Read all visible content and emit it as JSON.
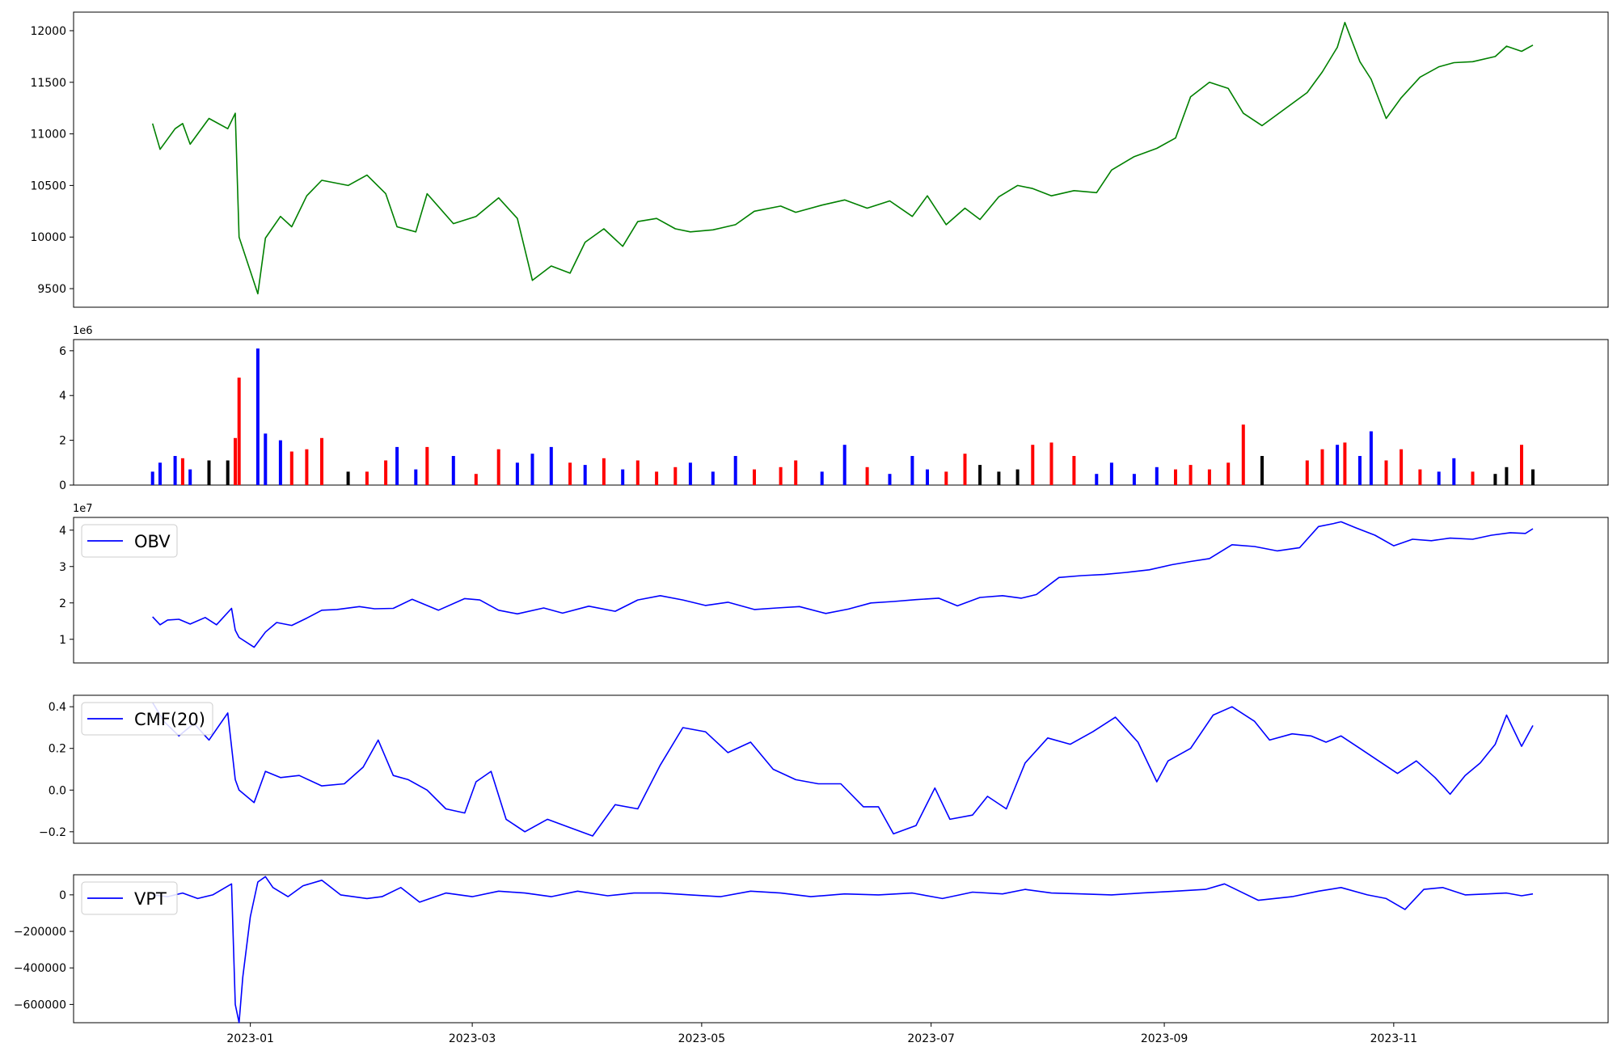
{
  "chart_data": [
    {
      "id": "price",
      "type": "line",
      "color": "#008000",
      "ylim": [
        9320,
        12180
      ],
      "yticks": [
        9500,
        10000,
        10500,
        11000,
        11500,
        12000
      ],
      "x": [
        "2022-12-06",
        "2022-12-08",
        "2022-12-12",
        "2022-12-14",
        "2022-12-16",
        "2022-12-21",
        "2022-12-26",
        "2022-12-28",
        "2022-12-29",
        "2023-01-03",
        "2023-01-05",
        "2023-01-09",
        "2023-01-12",
        "2023-01-16",
        "2023-01-20",
        "2023-01-27",
        "2023-02-01",
        "2023-02-06",
        "2023-02-09",
        "2023-02-14",
        "2023-02-17",
        "2023-02-24",
        "2023-03-02",
        "2023-03-08",
        "2023-03-13",
        "2023-03-17",
        "2023-03-22",
        "2023-03-27",
        "2023-03-31",
        "2023-04-05",
        "2023-04-10",
        "2023-04-14",
        "2023-04-19",
        "2023-04-24",
        "2023-04-28",
        "2023-05-04",
        "2023-05-10",
        "2023-05-15",
        "2023-05-22",
        "2023-05-26",
        "2023-06-02",
        "2023-06-08",
        "2023-06-14",
        "2023-06-20",
        "2023-06-26",
        "2023-06-30",
        "2023-07-05",
        "2023-07-10",
        "2023-07-14",
        "2023-07-19",
        "2023-07-24",
        "2023-07-28",
        "2023-08-02",
        "2023-08-08",
        "2023-08-14",
        "2023-08-18",
        "2023-08-24",
        "2023-08-30",
        "2023-09-04",
        "2023-09-08",
        "2023-09-13",
        "2023-09-18",
        "2023-09-22",
        "2023-09-27",
        "2023-10-09",
        "2023-10-13",
        "2023-10-17",
        "2023-10-19",
        "2023-10-23",
        "2023-10-26",
        "2023-10-30",
        "2023-11-03",
        "2023-11-08",
        "2023-11-13",
        "2023-11-17",
        "2023-11-22",
        "2023-11-28",
        "2023-12-01",
        "2023-12-05",
        "2023-12-08"
      ],
      "values": [
        11100,
        10850,
        11050,
        11100,
        10900,
        11150,
        11050,
        11200,
        10000,
        9450,
        9990,
        10200,
        10100,
        10400,
        10550,
        10500,
        10600,
        10420,
        10100,
        10050,
        10420,
        10130,
        10200,
        10380,
        10180,
        9580,
        9720,
        9650,
        9950,
        10080,
        9910,
        10150,
        10180,
        10080,
        10050,
        10070,
        10120,
        10250,
        10300,
        10240,
        10310,
        10360,
        10280,
        10350,
        10200,
        10400,
        10120,
        10280,
        10170,
        10390,
        10500,
        10470,
        10400,
        10450,
        10430,
        10650,
        10780,
        10860,
        10960,
        11360,
        11500,
        11440,
        11200,
        11080,
        11400,
        11600,
        11840,
        12080,
        11700,
        11530,
        11150,
        11350,
        11550,
        11650,
        11690,
        11700,
        11750,
        11850,
        11800,
        11860
      ]
    },
    {
      "id": "volume",
      "type": "bar",
      "exponent_label": "1e6",
      "ylim": [
        0,
        6500000
      ],
      "yticks": [
        0,
        2000000,
        4000000,
        6000000
      ],
      "ytick_labels": [
        "0",
        "2",
        "4",
        "6"
      ],
      "up_color": "#ff0000",
      "down_color": "#0000ff",
      "flat_color": "#000000",
      "x": [
        "2022-12-06",
        "2022-12-08",
        "2022-12-12",
        "2022-12-14",
        "2022-12-16",
        "2022-12-21",
        "2022-12-26",
        "2022-12-28",
        "2022-12-29",
        "2023-01-03",
        "2023-01-05",
        "2023-01-09",
        "2023-01-12",
        "2023-01-16",
        "2023-01-20",
        "2023-01-27",
        "2023-02-01",
        "2023-02-06",
        "2023-02-09",
        "2023-02-14",
        "2023-02-17",
        "2023-02-24",
        "2023-03-02",
        "2023-03-08",
        "2023-03-13",
        "2023-03-17",
        "2023-03-22",
        "2023-03-27",
        "2023-03-31",
        "2023-04-05",
        "2023-04-10",
        "2023-04-14",
        "2023-04-19",
        "2023-04-24",
        "2023-04-28",
        "2023-05-04",
        "2023-05-10",
        "2023-05-15",
        "2023-05-22",
        "2023-05-26",
        "2023-06-02",
        "2023-06-08",
        "2023-06-14",
        "2023-06-20",
        "2023-06-26",
        "2023-06-30",
        "2023-07-05",
        "2023-07-10",
        "2023-07-14",
        "2023-07-19",
        "2023-07-24",
        "2023-07-28",
        "2023-08-02",
        "2023-08-08",
        "2023-08-14",
        "2023-08-18",
        "2023-08-24",
        "2023-08-30",
        "2023-09-04",
        "2023-09-08",
        "2023-09-13",
        "2023-09-18",
        "2023-09-22",
        "2023-09-27",
        "2023-10-09",
        "2023-10-13",
        "2023-10-17",
        "2023-10-19",
        "2023-10-23",
        "2023-10-26",
        "2023-10-30",
        "2023-11-03",
        "2023-11-08",
        "2023-11-13",
        "2023-11-17",
        "2023-11-22",
        "2023-11-28",
        "2023-12-01",
        "2023-12-05",
        "2023-12-08"
      ],
      "values": [
        600000,
        1000000,
        1300000,
        1200000,
        700000,
        1100000,
        1100000,
        2100000,
        4800000,
        6100000,
        2300000,
        2000000,
        1500000,
        1600000,
        2100000,
        600000,
        600000,
        1100000,
        1700000,
        700000,
        1700000,
        1300000,
        500000,
        1600000,
        1000000,
        1400000,
        1700000,
        1000000,
        900000,
        1200000,
        700000,
        1100000,
        600000,
        800000,
        1000000,
        600000,
        1300000,
        700000,
        800000,
        1100000,
        600000,
        1800000,
        800000,
        500000,
        1300000,
        700000,
        600000,
        1400000,
        900000,
        600000,
        700000,
        1800000,
        1900000,
        1300000,
        500000,
        1000000,
        500000,
        800000,
        700000,
        900000,
        700000,
        1000000,
        2700000,
        1300000,
        1100000,
        1600000,
        1800000,
        1900000,
        1300000,
        2400000,
        1100000,
        1600000,
        700000,
        600000,
        1200000,
        600000,
        500000,
        800000,
        1800000,
        700000
      ],
      "directions": [
        "down",
        "down",
        "down",
        "up",
        "down",
        "flat",
        "flat",
        "up",
        "up",
        "down",
        "down",
        "down",
        "up",
        "up",
        "up",
        "flat",
        "up",
        "up",
        "down",
        "down",
        "up",
        "down",
        "up",
        "up",
        "down",
        "down",
        "down",
        "up",
        "down",
        "up",
        "down",
        "up",
        "up",
        "up",
        "down",
        "down",
        "down",
        "up",
        "up",
        "up",
        "down",
        "down",
        "up",
        "down",
        "down",
        "down",
        "up",
        "up",
        "flat",
        "flat",
        "flat",
        "up",
        "up",
        "up",
        "down",
        "down",
        "down",
        "down",
        "up",
        "up",
        "up",
        "up",
        "up",
        "flat",
        "up",
        "up",
        "down",
        "up",
        "down",
        "down",
        "up",
        "up",
        "up",
        "down",
        "down",
        "up",
        "flat",
        "flat",
        "up",
        "flat"
      ]
    },
    {
      "id": "obv",
      "type": "line",
      "color": "#0000ff",
      "legend": "OBV",
      "exponent_label": "1e7",
      "ylim": [
        3500000,
        43500000
      ],
      "yticks": [
        10000000,
        20000000,
        30000000,
        40000000
      ],
      "ytick_labels": [
        "1",
        "2",
        "3",
        "4"
      ],
      "x": [
        "2022-12-06",
        "2022-12-08",
        "2022-12-10",
        "2022-12-13",
        "2022-12-16",
        "2022-12-20",
        "2022-12-23",
        "2022-12-27",
        "2022-12-28",
        "2022-12-29",
        "2023-01-02",
        "2023-01-05",
        "2023-01-08",
        "2023-01-12",
        "2023-01-16",
        "2023-01-20",
        "2023-01-24",
        "2023-01-30",
        "2023-02-03",
        "2023-02-08",
        "2023-02-13",
        "2023-02-20",
        "2023-02-27",
        "2023-03-03",
        "2023-03-08",
        "2023-03-13",
        "2023-03-20",
        "2023-03-25",
        "2023-04-01",
        "2023-04-08",
        "2023-04-14",
        "2023-04-20",
        "2023-04-26",
        "2023-05-02",
        "2023-05-08",
        "2023-05-15",
        "2023-05-21",
        "2023-05-27",
        "2023-06-03",
        "2023-06-09",
        "2023-06-15",
        "2023-06-21",
        "2023-06-27",
        "2023-07-03",
        "2023-07-08",
        "2023-07-14",
        "2023-07-20",
        "2023-07-25",
        "2023-07-29",
        "2023-08-04",
        "2023-08-10",
        "2023-08-16",
        "2023-08-22",
        "2023-08-28",
        "2023-09-03",
        "2023-09-08",
        "2023-09-13",
        "2023-09-19",
        "2023-09-25",
        "2023-10-01",
        "2023-10-07",
        "2023-10-12",
        "2023-10-16",
        "2023-10-18",
        "2023-10-22",
        "2023-10-27",
        "2023-11-01",
        "2023-11-06",
        "2023-11-11",
        "2023-11-16",
        "2023-11-22",
        "2023-11-27",
        "2023-12-02",
        "2023-12-06",
        "2023-12-08"
      ],
      "values": [
        16200000,
        14000000,
        15300000,
        15500000,
        14200000,
        16000000,
        14000000,
        18500000,
        12500000,
        10500000,
        7800000,
        12000000,
        14600000,
        13800000,
        15800000,
        18000000,
        18200000,
        19000000,
        18400000,
        18500000,
        21000000,
        18000000,
        21200000,
        20800000,
        18000000,
        17000000,
        18600000,
        17200000,
        19100000,
        17700000,
        20800000,
        22000000,
        20800000,
        19300000,
        20200000,
        18200000,
        18600000,
        19000000,
        17100000,
        18300000,
        20000000,
        20400000,
        20900000,
        21300000,
        19200000,
        21500000,
        22000000,
        21300000,
        22300000,
        27000000,
        27500000,
        27800000,
        28400000,
        29100000,
        30500000,
        31400000,
        32200000,
        36000000,
        35500000,
        34300000,
        35200000,
        41000000,
        41800000,
        42300000,
        40600000,
        38600000,
        35700000,
        37500000,
        37100000,
        37800000,
        37500000,
        38600000,
        39300000,
        39100000,
        40400000
      ]
    },
    {
      "id": "cmf",
      "type": "line",
      "color": "#0000ff",
      "legend": "CMF(20)",
      "ylim": [
        -0.255,
        0.455
      ],
      "yticks": [
        -0.2,
        0.0,
        0.2,
        0.4
      ],
      "ytick_labels": [
        "−0.2",
        "0.0",
        "0.2",
        "0.4"
      ],
      "x": [
        "2022-12-06",
        "2022-12-09",
        "2022-12-13",
        "2022-12-17",
        "2022-12-21",
        "2022-12-26",
        "2022-12-28",
        "2022-12-29",
        "2023-01-02",
        "2023-01-05",
        "2023-01-09",
        "2023-01-14",
        "2023-01-20",
        "2023-01-26",
        "2023-01-31",
        "2023-02-04",
        "2023-02-08",
        "2023-02-12",
        "2023-02-17",
        "2023-02-22",
        "2023-02-27",
        "2023-03-02",
        "2023-03-06",
        "2023-03-10",
        "2023-03-15",
        "2023-03-21",
        "2023-03-27",
        "2023-04-02",
        "2023-04-08",
        "2023-04-14",
        "2023-04-20",
        "2023-04-26",
        "2023-05-02",
        "2023-05-08",
        "2023-05-14",
        "2023-05-20",
        "2023-05-26",
        "2023-06-01",
        "2023-06-07",
        "2023-06-13",
        "2023-06-17",
        "2023-06-21",
        "2023-06-27",
        "2023-07-02",
        "2023-07-06",
        "2023-07-12",
        "2023-07-16",
        "2023-07-21",
        "2023-07-26",
        "2023-08-01",
        "2023-08-07",
        "2023-08-13",
        "2023-08-19",
        "2023-08-25",
        "2023-08-30",
        "2023-09-02",
        "2023-09-08",
        "2023-09-14",
        "2023-09-19",
        "2023-09-25",
        "2023-09-29",
        "2023-10-05",
        "2023-10-10",
        "2023-10-14",
        "2023-10-18",
        "2023-10-23",
        "2023-10-28",
        "2023-11-02",
        "2023-11-07",
        "2023-11-12",
        "2023-11-16",
        "2023-11-20",
        "2023-11-24",
        "2023-11-28",
        "2023-12-01",
        "2023-12-05",
        "2023-12-08"
      ],
      "values": [
        0.42,
        0.33,
        0.26,
        0.32,
        0.24,
        0.37,
        0.05,
        0.0,
        -0.06,
        0.09,
        0.06,
        0.07,
        0.02,
        0.03,
        0.11,
        0.24,
        0.07,
        0.05,
        0.0,
        -0.09,
        -0.11,
        0.04,
        0.09,
        -0.14,
        -0.2,
        -0.14,
        -0.18,
        -0.22,
        -0.07,
        -0.09,
        0.12,
        0.3,
        0.28,
        0.18,
        0.23,
        0.1,
        0.05,
        0.03,
        0.03,
        -0.08,
        -0.08,
        -0.21,
        -0.17,
        0.01,
        -0.14,
        -0.12,
        -0.03,
        -0.09,
        0.13,
        0.25,
        0.22,
        0.28,
        0.35,
        0.23,
        0.04,
        0.14,
        0.2,
        0.36,
        0.4,
        0.33,
        0.24,
        0.27,
        0.26,
        0.23,
        0.26,
        0.2,
        0.14,
        0.08,
        0.14,
        0.06,
        -0.02,
        0.07,
        0.13,
        0.22,
        0.36,
        0.21,
        0.31
      ]
    },
    {
      "id": "vpt",
      "type": "line",
      "color": "#0000ff",
      "legend": "VPT",
      "ylim": [
        -700000,
        110000
      ],
      "yticks": [
        -600000,
        -400000,
        -200000,
        0
      ],
      "ytick_labels": [
        "−600000",
        "−400000",
        "−200000",
        "0"
      ],
      "x": [
        "2022-12-06",
        "2022-12-10",
        "2022-12-14",
        "2022-12-18",
        "2022-12-22",
        "2022-12-27",
        "2022-12-28",
        "2022-12-29",
        "2022-12-30",
        "2023-01-01",
        "2023-01-03",
        "2023-01-05",
        "2023-01-07",
        "2023-01-11",
        "2023-01-15",
        "2023-01-20",
        "2023-01-25",
        "2023-02-01",
        "2023-02-05",
        "2023-02-10",
        "2023-02-15",
        "2023-02-22",
        "2023-03-01",
        "2023-03-08",
        "2023-03-15",
        "2023-03-22",
        "2023-03-29",
        "2023-04-06",
        "2023-04-13",
        "2023-04-20",
        "2023-04-28",
        "2023-05-06",
        "2023-05-14",
        "2023-05-22",
        "2023-05-30",
        "2023-06-08",
        "2023-06-17",
        "2023-06-26",
        "2023-07-04",
        "2023-07-12",
        "2023-07-20",
        "2023-07-26",
        "2023-08-02",
        "2023-08-10",
        "2023-08-18",
        "2023-08-26",
        "2023-09-04",
        "2023-09-12",
        "2023-09-17",
        "2023-09-21",
        "2023-09-26",
        "2023-10-05",
        "2023-10-12",
        "2023-10-18",
        "2023-10-25",
        "2023-10-30",
        "2023-11-04",
        "2023-11-09",
        "2023-11-14",
        "2023-11-20",
        "2023-11-26",
        "2023-12-01",
        "2023-12-05",
        "2023-12-08"
      ],
      "values": [
        0,
        -10000,
        10000,
        -20000,
        0,
        60000,
        -600000,
        -700000,
        -450000,
        -120000,
        70000,
        100000,
        40000,
        -10000,
        50000,
        80000,
        0,
        -20000,
        -10000,
        40000,
        -40000,
        10000,
        -10000,
        20000,
        10000,
        -10000,
        20000,
        -5000,
        10000,
        10000,
        0,
        -10000,
        20000,
        10000,
        -10000,
        5000,
        0,
        10000,
        -20000,
        15000,
        5000,
        30000,
        10000,
        5000,
        0,
        10000,
        20000,
        30000,
        60000,
        20000,
        -30000,
        -10000,
        20000,
        40000,
        0,
        -20000,
        -80000,
        30000,
        40000,
        0,
        5000,
        10000,
        -5000,
        5000
      ]
    }
  ],
  "x_axis": {
    "range": [
      "2022-11-15",
      "2023-12-28"
    ],
    "ticks": [
      "2023-01-01",
      "2023-03-01",
      "2023-05-01",
      "2023-07-01",
      "2023-09-01",
      "2023-11-01"
    ],
    "tick_labels": [
      "2023-01",
      "2023-03",
      "2023-05",
      "2023-07",
      "2023-09",
      "2023-11"
    ]
  }
}
